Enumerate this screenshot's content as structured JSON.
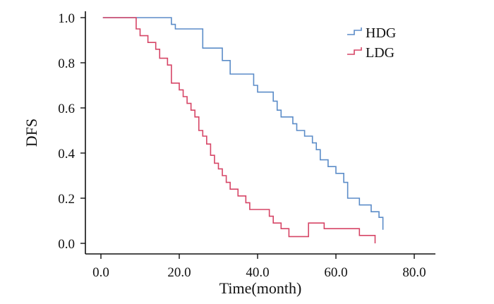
{
  "chart_data": {
    "type": "line",
    "title": "",
    "xlabel": "Time(month)",
    "ylabel": "DFS",
    "xlim": [
      0,
      85
    ],
    "ylim": [
      0,
      1.0
    ],
    "xticks": [
      0,
      20,
      40,
      60,
      80
    ],
    "xtick_labels": [
      "0.0",
      "20.0",
      "40.0",
      "60.0",
      "80.0"
    ],
    "yticks": [
      0,
      0.2,
      0.4,
      0.6,
      0.8,
      1.0
    ],
    "ytick_labels": [
      "0.0",
      "0.2",
      "0.4",
      "0.6",
      "0.8",
      "1.0"
    ],
    "grid": false,
    "legend_position": "top-right",
    "step": true,
    "series": [
      {
        "name": "HDG",
        "color": "#5b8cc8",
        "x": [
          0.5,
          18,
          19,
          26,
          31,
          33,
          39,
          40,
          44,
          45,
          46,
          49,
          50,
          52,
          54,
          55,
          56,
          58,
          60,
          62,
          63,
          66,
          69,
          71,
          72
        ],
        "y": [
          1.0,
          0.97,
          0.95,
          0.865,
          0.81,
          0.75,
          0.7,
          0.67,
          0.63,
          0.59,
          0.56,
          0.53,
          0.5,
          0.475,
          0.445,
          0.415,
          0.37,
          0.34,
          0.31,
          0.27,
          0.2,
          0.17,
          0.14,
          0.115,
          0.06
        ]
      },
      {
        "name": "LDG",
        "color": "#d64566",
        "x": [
          0.5,
          9,
          10,
          12,
          14,
          15,
          17,
          18,
          20,
          21,
          22,
          23,
          24,
          25,
          26,
          27,
          28,
          29,
          30,
          31,
          32,
          33,
          35,
          37,
          38,
          43,
          44,
          46,
          48,
          53,
          57,
          66,
          70
        ],
        "y": [
          1.0,
          0.95,
          0.92,
          0.89,
          0.86,
          0.82,
          0.79,
          0.71,
          0.68,
          0.65,
          0.62,
          0.59,
          0.56,
          0.5,
          0.475,
          0.44,
          0.39,
          0.355,
          0.33,
          0.3,
          0.27,
          0.24,
          0.21,
          0.18,
          0.15,
          0.12,
          0.09,
          0.065,
          0.03,
          0.09,
          0.065,
          0.035,
          0.0
        ]
      }
    ]
  }
}
